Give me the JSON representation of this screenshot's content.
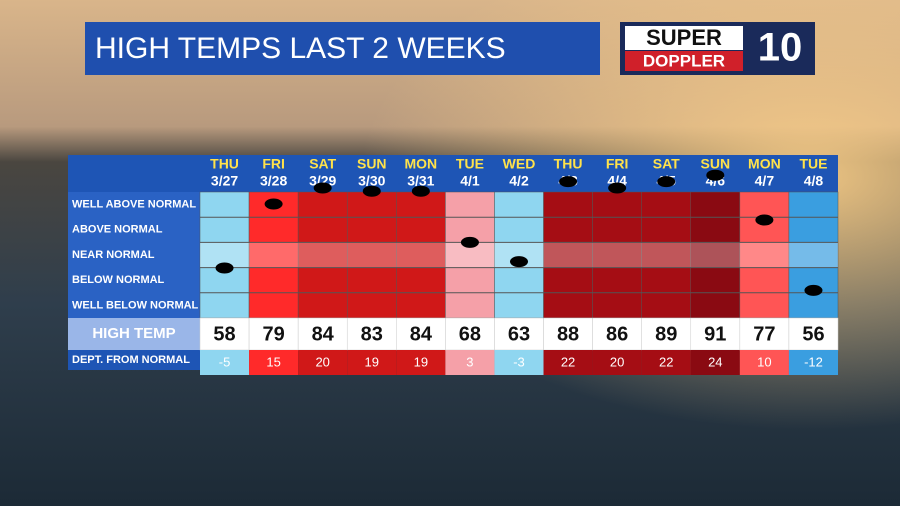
{
  "header": {
    "title": "HIGH TEMPS LAST 2 WEEKS",
    "logo": {
      "top": "SUPER",
      "bottom": "DOPPLER",
      "number": "10"
    }
  },
  "table": {
    "row_labels": [
      "WELL ABOVE NORMAL",
      "ABOVE NORMAL",
      "NEAR NORMAL",
      "BELOW NORMAL",
      "WELL BELOW NORMAL"
    ],
    "high_label": "HIGH TEMP",
    "dept_label": "DEPT. FROM NORMAL",
    "days": [
      "THU",
      "FRI",
      "SAT",
      "SUN",
      "MON",
      "TUE",
      "WED",
      "THU",
      "FRI",
      "SAT",
      "SUN",
      "MON",
      "TUE"
    ],
    "dates": [
      "3/27",
      "3/28",
      "3/29",
      "3/30",
      "3/31",
      "4/1",
      "4/2",
      "4/3",
      "4/4",
      "4/5",
      "4/6",
      "4/7",
      "4/8"
    ],
    "high_temps": [
      58,
      79,
      84,
      83,
      84,
      68,
      63,
      88,
      86,
      89,
      91,
      77,
      56
    ],
    "departures": [
      -5,
      15,
      20,
      19,
      19,
      3,
      -3,
      22,
      20,
      22,
      24,
      10,
      -12
    ],
    "colors": [
      "#8fd6f0",
      "#ff2a2a",
      "#d01818",
      "#d01818",
      "#d01818",
      "#f5a0a8",
      "#8fd6f0",
      "#a50d14",
      "#a50d14",
      "#a50d14",
      "#8a0a12",
      "#ff5555",
      "#3a9ee0"
    ]
  }
}
